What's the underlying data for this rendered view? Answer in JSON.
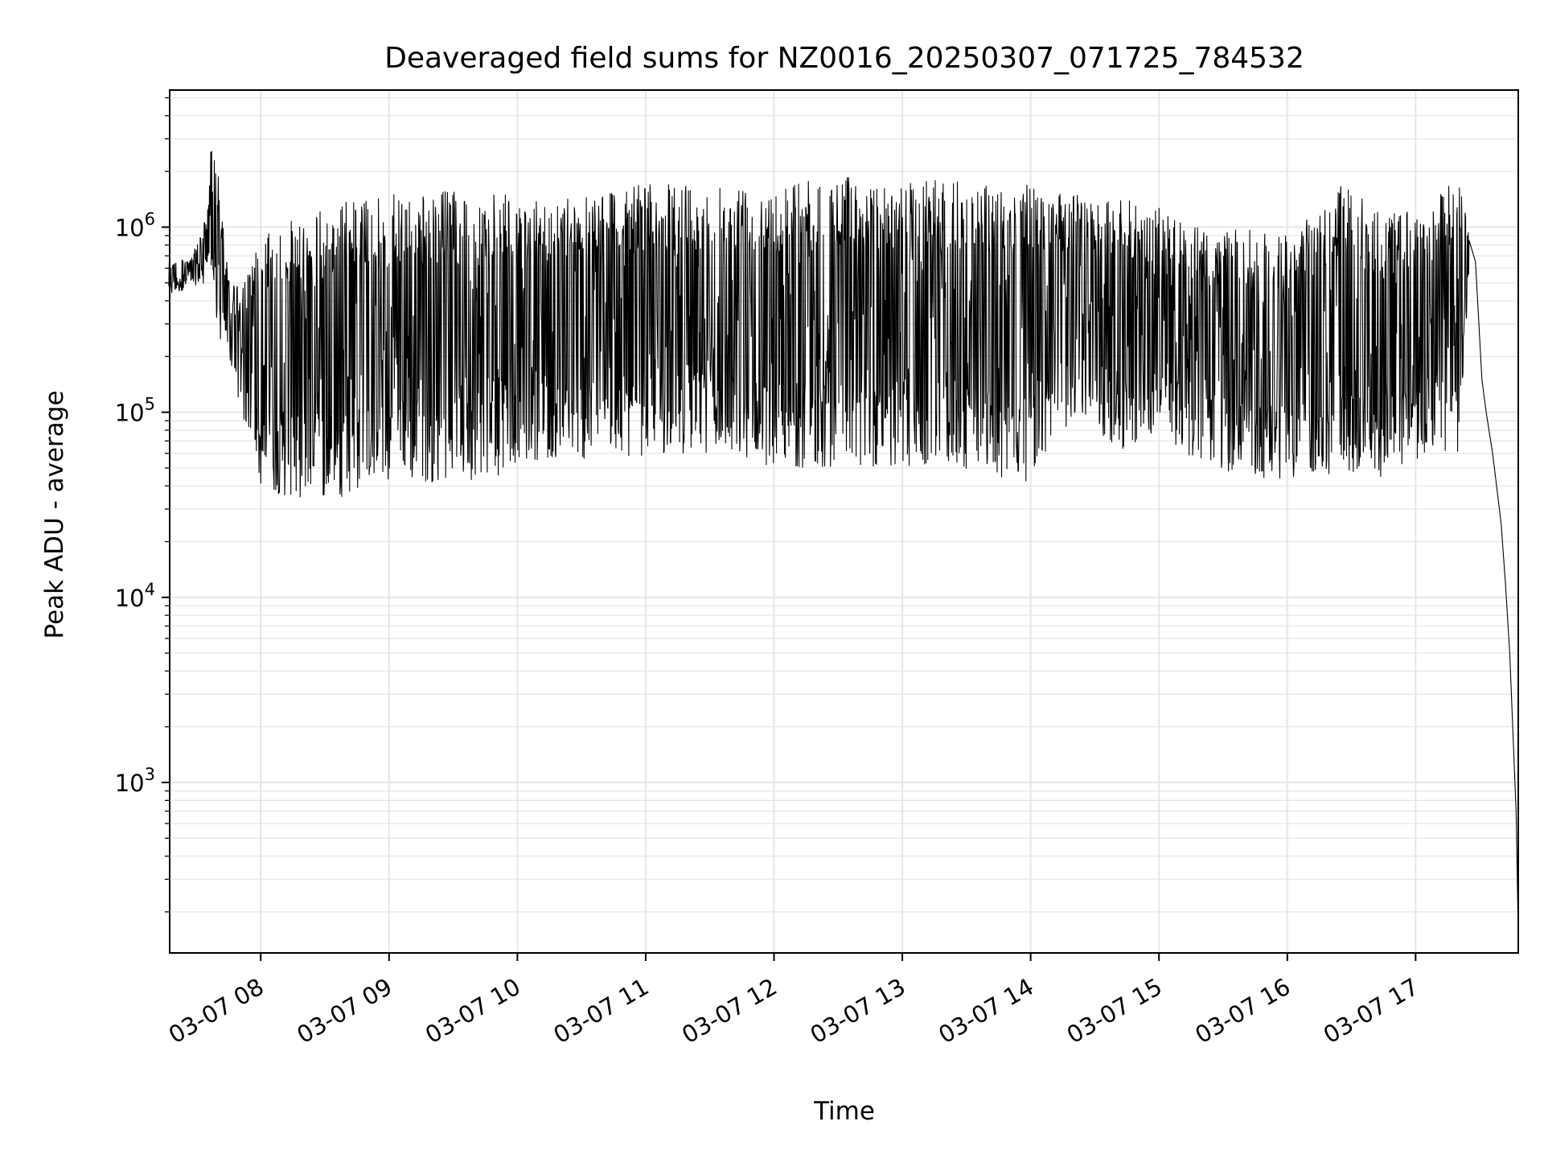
{
  "chart_data": {
    "type": "line",
    "title": "Deaveraged field sums for NZ0016_20250307_071725_784532",
    "xlabel": "Time",
    "ylabel": "Peak ADU - average",
    "y_scale": "log",
    "ylim": [
      120,
      5500000
    ],
    "xlim": [
      "2025-03-07 07:17:25",
      "2025-03-07 17:48:00"
    ],
    "x_ticks": [
      {
        "label": "03-07 08",
        "time": "2025-03-07 08:00"
      },
      {
        "label": "03-07 09",
        "time": "2025-03-07 09:00"
      },
      {
        "label": "03-07 10",
        "time": "2025-03-07 10:00"
      },
      {
        "label": "03-07 11",
        "time": "2025-03-07 11:00"
      },
      {
        "label": "03-07 12",
        "time": "2025-03-07 12:00"
      },
      {
        "label": "03-07 13",
        "time": "2025-03-07 13:00"
      },
      {
        "label": "03-07 14",
        "time": "2025-03-07 14:00"
      },
      {
        "label": "03-07 15",
        "time": "2025-03-07 15:00"
      },
      {
        "label": "03-07 16",
        "time": "2025-03-07 16:00"
      },
      {
        "label": "03-07 17",
        "time": "2025-03-07 17:00"
      }
    ],
    "y_ticks": [
      {
        "base": "10",
        "exp": "3",
        "value": 1000
      },
      {
        "base": "10",
        "exp": "4",
        "value": 10000
      },
      {
        "base": "10",
        "exp": "5",
        "value": 100000
      },
      {
        "base": "10",
        "exp": "6",
        "value": 1000000
      }
    ],
    "grid": true,
    "line_color": "#000000",
    "grid_color": "#e6e6e6",
    "envelope": [
      {
        "time": "2025-03-07 07:17",
        "low": 420000,
        "high": 650000
      },
      {
        "time": "2025-03-07 07:28",
        "low": 480000,
        "high": 700000
      },
      {
        "time": "2025-03-07 07:35",
        "low": 500000,
        "high": 1200000
      },
      {
        "time": "2025-03-07 07:37",
        "low": 600000,
        "high": 3200000
      },
      {
        "time": "2025-03-07 07:40",
        "low": 250000,
        "high": 2000000
      },
      {
        "time": "2025-03-07 07:45",
        "low": 200000,
        "high": 520000
      },
      {
        "time": "2025-03-07 07:52",
        "low": 90000,
        "high": 500000
      },
      {
        "time": "2025-03-07 08:00",
        "low": 40000,
        "high": 880000
      },
      {
        "time": "2025-03-07 08:15",
        "low": 33000,
        "high": 1100000
      },
      {
        "time": "2025-03-07 08:40",
        "low": 35000,
        "high": 1400000
      },
      {
        "time": "2025-03-07 09:00",
        "low": 40000,
        "high": 1500000
      },
      {
        "time": "2025-03-07 09:30",
        "low": 42000,
        "high": 1600000
      },
      {
        "time": "2025-03-07 09:55",
        "low": 45000,
        "high": 1500000
      },
      {
        "time": "2025-03-07 10:00",
        "low": 55000,
        "high": 1300000
      },
      {
        "time": "2025-03-07 10:30",
        "low": 55000,
        "high": 1600000
      },
      {
        "time": "2025-03-07 11:00",
        "low": 58000,
        "high": 1700000
      },
      {
        "time": "2025-03-07 11:30",
        "low": 60000,
        "high": 1750000
      },
      {
        "time": "2025-03-07 12:00",
        "low": 50000,
        "high": 1750000
      },
      {
        "time": "2025-03-07 12:30",
        "low": 50000,
        "high": 1900000
      },
      {
        "time": "2025-03-07 13:00",
        "low": 50000,
        "high": 1800000
      },
      {
        "time": "2025-03-07 13:30",
        "low": 48000,
        "high": 1800000
      },
      {
        "time": "2025-03-07 13:58",
        "low": 42000,
        "high": 1700000
      },
      {
        "time": "2025-03-07 14:20",
        "low": 90000,
        "high": 1500000
      },
      {
        "time": "2025-03-07 14:45",
        "low": 60000,
        "high": 1400000
      },
      {
        "time": "2025-03-07 15:00",
        "low": 80000,
        "high": 1300000
      },
      {
        "time": "2025-03-07 15:15",
        "low": 55000,
        "high": 1000000
      },
      {
        "time": "2025-03-07 15:40",
        "low": 45000,
        "high": 1000000
      },
      {
        "time": "2025-03-07 16:00",
        "low": 42000,
        "high": 900000
      },
      {
        "time": "2025-03-07 16:15",
        "low": 45000,
        "high": 1300000
      },
      {
        "time": "2025-03-07 16:25",
        "low": 40000,
        "high": 1700000
      },
      {
        "time": "2025-03-07 16:45",
        "low": 45000,
        "high": 1200000
      },
      {
        "time": "2025-03-07 17:00",
        "low": 55000,
        "high": 1300000
      },
      {
        "time": "2025-03-07 17:20",
        "low": 60000,
        "high": 1800000
      },
      {
        "time": "2025-03-07 17:25",
        "low": 450000,
        "high": 1100000
      }
    ],
    "tail": [
      {
        "time": "2025-03-07 17:25",
        "value": 850000
      },
      {
        "time": "2025-03-07 17:28",
        "value": 650000
      },
      {
        "time": "2025-03-07 17:31",
        "value": 150000
      },
      {
        "time": "2025-03-07 17:33",
        "value": 100000
      },
      {
        "time": "2025-03-07 17:36",
        "value": 60000
      },
      {
        "time": "2025-03-07 17:40",
        "value": 25000
      },
      {
        "time": "2025-03-07 17:42",
        "value": 12000
      },
      {
        "time": "2025-03-07 17:44",
        "value": 5000
      },
      {
        "time": "2025-03-07 17:47",
        "value": 700
      },
      {
        "time": "2025-03-07 17:48",
        "value": 150
      }
    ]
  }
}
